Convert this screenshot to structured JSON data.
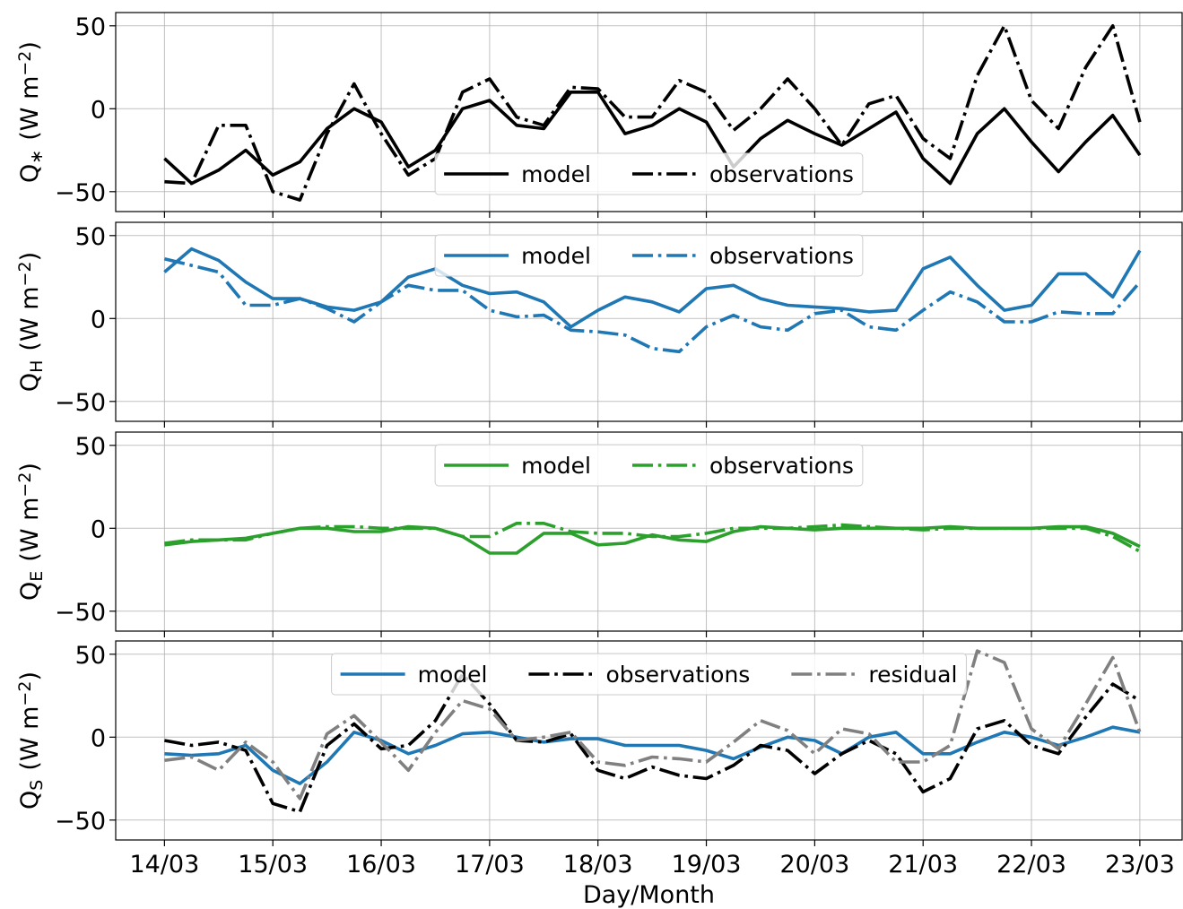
{
  "chart_data": [
    {
      "type": "line",
      "ylabel": {
        "symbol": "Q",
        "subscript": "∗",
        "unit": "(W m",
        "exponent": "−2",
        "close": ")"
      },
      "x": [
        0,
        0.25,
        0.5,
        0.75,
        1,
        1.25,
        1.5,
        1.75,
        2,
        2.25,
        2.5,
        2.75,
        3,
        3.25,
        3.5,
        3.75,
        4,
        4.25,
        4.5,
        4.75,
        5,
        5.25,
        5.5,
        5.75,
        6,
        6.25,
        6.5,
        6.75,
        7,
        7.25,
        7.5,
        7.75,
        8,
        8.25,
        8.5,
        8.75,
        9
      ],
      "xlim": [
        -0.45,
        9.39
      ],
      "xticks": [
        0,
        1,
        2,
        3,
        4,
        5,
        6,
        7,
        8,
        9
      ],
      "ylim": [
        -62,
        58
      ],
      "yticks": [
        -50,
        0,
        50
      ],
      "grid": true,
      "legend": "lower center",
      "series": [
        {
          "name": "model",
          "color": "#000000",
          "linestyle": "solid",
          "values": [
            -30,
            -45,
            -37,
            -25,
            -40,
            -32,
            -12,
            0,
            -8,
            -35,
            -25,
            0,
            5,
            -10,
            -12,
            10,
            10,
            -15,
            -10,
            0,
            -8,
            -35,
            -18,
            -7,
            -15,
            -22,
            -12,
            -2,
            -30,
            -45,
            -15,
            0,
            -20,
            -38,
            -20,
            -4,
            -28
          ]
        },
        {
          "name": "observations",
          "color": "#000000",
          "linestyle": "dashdot",
          "values": [
            -44,
            -45,
            -10,
            -10,
            -50,
            -55,
            -15,
            15,
            -15,
            -40,
            -30,
            10,
            18,
            -5,
            -10,
            13,
            12,
            -5,
            -5,
            17,
            10,
            -13,
            0,
            18,
            0,
            -22,
            3,
            8,
            -18,
            -30,
            20,
            50,
            5,
            -12,
            25,
            50,
            -8
          ]
        }
      ]
    },
    {
      "type": "line",
      "ylabel": {
        "symbol": "Q",
        "subscript": "H",
        "unit": "(W m",
        "exponent": "−2",
        "close": ")"
      },
      "x": [
        0,
        0.25,
        0.5,
        0.75,
        1,
        1.25,
        1.5,
        1.75,
        2,
        2.25,
        2.5,
        2.75,
        3,
        3.25,
        3.5,
        3.75,
        4,
        4.25,
        4.5,
        4.75,
        5,
        5.25,
        5.5,
        5.75,
        6,
        6.25,
        6.5,
        6.75,
        7,
        7.25,
        7.5,
        7.75,
        8,
        8.25,
        8.5,
        8.75,
        9
      ],
      "xlim": [
        -0.45,
        9.39
      ],
      "xticks": [
        0,
        1,
        2,
        3,
        4,
        5,
        6,
        7,
        8,
        9
      ],
      "ylim": [
        -62,
        58
      ],
      "yticks": [
        -50,
        0,
        50
      ],
      "grid": true,
      "legend": "upper center",
      "series": [
        {
          "name": "model",
          "color": "#1f77b4",
          "linestyle": "solid",
          "values": [
            28,
            42,
            35,
            22,
            12,
            12,
            7,
            5,
            10,
            25,
            30,
            20,
            15,
            16,
            10,
            -5,
            5,
            13,
            10,
            4,
            18,
            20,
            12,
            8,
            7,
            6,
            4,
            5,
            30,
            37,
            20,
            5,
            8,
            27,
            27,
            13,
            41
          ]
        },
        {
          "name": "observations",
          "color": "#1f77b4",
          "linestyle": "dashdot",
          "values": [
            36,
            32,
            28,
            8,
            8,
            12,
            6,
            -2,
            10,
            20,
            17,
            17,
            5,
            1,
            2,
            -7,
            -8,
            -10,
            -18,
            -20,
            -5,
            2,
            -5,
            -7,
            3,
            5,
            -5,
            -7,
            5,
            16,
            10,
            -2,
            -2,
            4,
            3,
            3,
            22
          ]
        }
      ]
    },
    {
      "type": "line",
      "ylabel": {
        "symbol": "Q",
        "subscript": "E",
        "unit": "(W m",
        "exponent": "−2",
        "close": ")"
      },
      "x": [
        0,
        0.25,
        0.5,
        0.75,
        1,
        1.25,
        1.5,
        1.75,
        2,
        2.25,
        2.5,
        2.75,
        3,
        3.25,
        3.5,
        3.75,
        4,
        4.25,
        4.5,
        4.75,
        5,
        5.25,
        5.5,
        5.75,
        6,
        6.25,
        6.5,
        6.75,
        7,
        7.25,
        7.5,
        7.75,
        8,
        8.25,
        8.5,
        8.75,
        9
      ],
      "xlim": [
        -0.45,
        9.39
      ],
      "xticks": [
        0,
        1,
        2,
        3,
        4,
        5,
        6,
        7,
        8,
        9
      ],
      "ylim": [
        -62,
        58
      ],
      "yticks": [
        -50,
        0,
        50
      ],
      "grid": true,
      "legend": "upper center",
      "series": [
        {
          "name": "model",
          "color": "#2ca02c",
          "linestyle": "solid",
          "values": [
            -10,
            -8,
            -7,
            -6,
            -3,
            0,
            0,
            -2,
            -2,
            1,
            0,
            -5,
            -15,
            -15,
            -3,
            -3,
            -10,
            -9,
            -4,
            -7,
            -8,
            -2,
            1,
            0,
            -1,
            0,
            0,
            0,
            0,
            1,
            0,
            0,
            0,
            1,
            1,
            -3,
            -11
          ]
        },
        {
          "name": "observations",
          "color": "#2ca02c",
          "linestyle": "dashdot",
          "values": [
            -9,
            -7,
            -7,
            -7,
            -3,
            0,
            1,
            1,
            0,
            0,
            0,
            -5,
            -5,
            3,
            3,
            -2,
            -3,
            -3,
            -5,
            -5,
            -3,
            0,
            0,
            0,
            1,
            2,
            1,
            0,
            -1,
            0,
            0,
            0,
            0,
            0,
            0,
            -5,
            -14
          ]
        }
      ]
    },
    {
      "type": "line",
      "ylabel": {
        "symbol": "Q",
        "subscript": "S",
        "unit": "(W m",
        "exponent": "−2",
        "close": ")"
      },
      "x": [
        0,
        0.25,
        0.5,
        0.75,
        1,
        1.25,
        1.5,
        1.75,
        2,
        2.25,
        2.5,
        2.75,
        3,
        3.25,
        3.5,
        3.75,
        4,
        4.25,
        4.5,
        4.75,
        5,
        5.25,
        5.5,
        5.75,
        6,
        6.25,
        6.5,
        6.75,
        7,
        7.25,
        7.5,
        7.75,
        8,
        8.25,
        8.5,
        8.75,
        9
      ],
      "xlim": [
        -0.45,
        9.39
      ],
      "xticks": [
        {
          "value": 0,
          "label": "14/03"
        },
        {
          "value": 1,
          "label": "15/03"
        },
        {
          "value": 2,
          "label": "16/03"
        },
        {
          "value": 3,
          "label": "17/03"
        },
        {
          "value": 4,
          "label": "18/03"
        },
        {
          "value": 5,
          "label": "19/03"
        },
        {
          "value": 6,
          "label": "20/03"
        },
        {
          "value": 7,
          "label": "21/03"
        },
        {
          "value": 8,
          "label": "22/03"
        },
        {
          "value": 9,
          "label": "23/03"
        }
      ],
      "xlabel": "Day/Month",
      "ylim": [
        -62,
        58
      ],
      "yticks": [
        -50,
        0,
        50
      ],
      "grid": true,
      "legend": "upper center",
      "series": [
        {
          "name": "model",
          "color": "#1f77b4",
          "linestyle": "solid",
          "values": [
            -10,
            -11,
            -10,
            -5,
            -20,
            -28,
            -15,
            3,
            -2,
            -10,
            -5,
            2,
            3,
            0,
            -3,
            -1,
            -1,
            -5,
            -5,
            -5,
            -8,
            -13,
            -6,
            0,
            -2,
            -10,
            0,
            3,
            -10,
            -10,
            -3,
            3,
            0,
            -5,
            0,
            6,
            3
          ]
        },
        {
          "name": "observations",
          "color": "#000000",
          "linestyle": "dashdot",
          "values": [
            -2,
            -5,
            -3,
            -8,
            -40,
            -45,
            -5,
            8,
            -7,
            -5,
            10,
            38,
            20,
            -2,
            -3,
            2,
            -20,
            -25,
            -18,
            -23,
            -25,
            -17,
            -5,
            -8,
            -22,
            -10,
            -2,
            -10,
            -33,
            -25,
            5,
            10,
            -5,
            -10,
            12,
            32,
            22
          ]
        },
        {
          "name": "residual",
          "color": "#808080",
          "linestyle": "dashdot",
          "values": [
            -14,
            -12,
            -20,
            -3,
            -15,
            -37,
            2,
            13,
            -3,
            -20,
            3,
            22,
            17,
            -2,
            0,
            3,
            -15,
            -17,
            -12,
            -13,
            -15,
            -3,
            10,
            4,
            -10,
            5,
            2,
            -15,
            -15,
            -5,
            52,
            45,
            5,
            -7,
            20,
            48,
            3
          ]
        }
      ]
    }
  ]
}
